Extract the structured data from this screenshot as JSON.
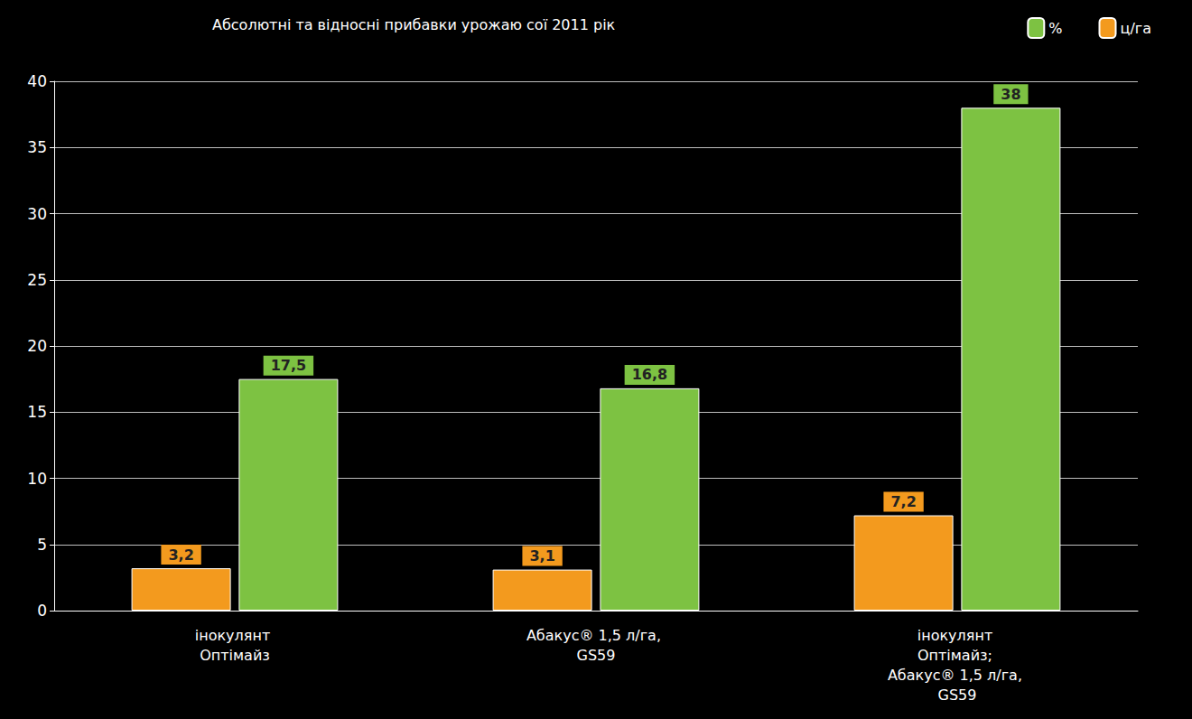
{
  "chart_data": {
    "type": "bar",
    "title": "Абсолютні та відносні прибавки урожаю сої 2011 рік",
    "categories": [
      "інокулянт Оптімайз",
      "Абакус® 1,5 л/га, GS59",
      "інокулянт Оптімайз; Абакус® 1,5 л/га, GS59"
    ],
    "series": [
      {
        "name": "ц/га",
        "color": "#f39a1e",
        "values": [
          3.2,
          3.1,
          7.2
        ],
        "value_labels": [
          "3,2",
          "3,1",
          "7,2"
        ]
      },
      {
        "name": "%",
        "color": "#7dc242",
        "values": [
          17.5,
          16.8,
          38
        ],
        "value_labels": [
          "17,5",
          "16,8",
          "38"
        ]
      }
    ],
    "ylim": [
      0,
      40
    ],
    "yticks": [
      0,
      5,
      10,
      15,
      20,
      25,
      30,
      35,
      40
    ],
    "grid": true,
    "legend": "top-right",
    "data_labels": true
  }
}
